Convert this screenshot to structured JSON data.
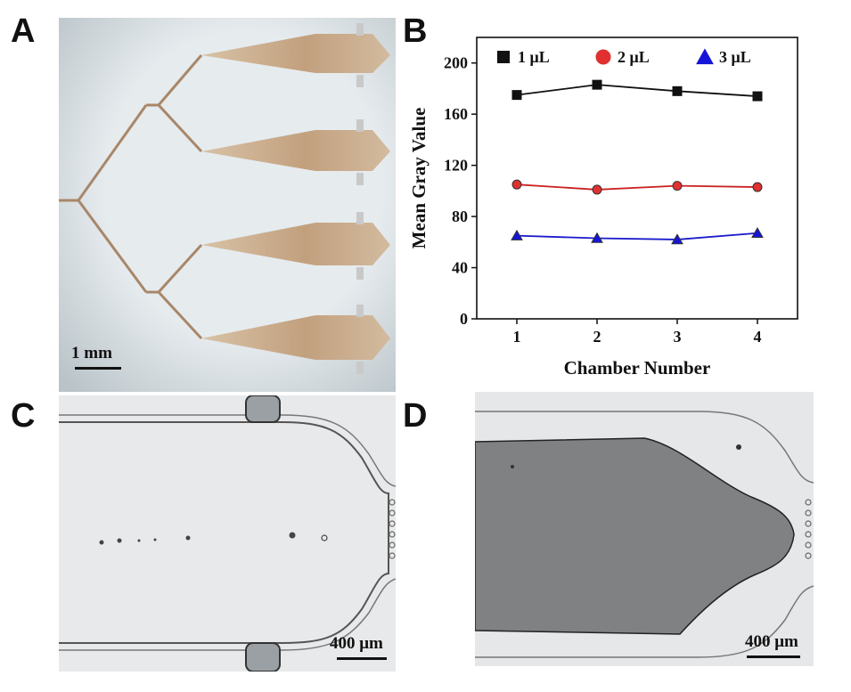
{
  "figure": {
    "panels": {
      "A": {
        "letter": "A",
        "scale_label": "1 mm"
      },
      "B": {
        "letter": "B"
      },
      "C": {
        "letter": "C",
        "scale_label": "400 μm"
      },
      "D": {
        "letter": "D",
        "scale_label": "400 μm"
      }
    }
  },
  "colors": {
    "series_1": "#111111",
    "series_2": "#cc2222",
    "series_3": "#1a1acc",
    "marker_2_fill": "#e03030",
    "marker_3_fill": "#1515d8",
    "chamber_fill": "#c8ab8a",
    "photo_bg": "#e6ebee"
  },
  "chart_data": {
    "type": "line",
    "categories": [
      "1",
      "2",
      "3",
      "4"
    ],
    "x": [
      1,
      2,
      3,
      4
    ],
    "xlim": [
      0.5,
      4.5
    ],
    "ylim": [
      0,
      220
    ],
    "yticks": [
      0,
      40,
      80,
      120,
      160,
      200
    ],
    "xlabel": "Chamber Number",
    "ylabel": "Mean Gray Value",
    "legend_position": "top",
    "series": [
      {
        "name": "1 μL",
        "marker": "square",
        "values": [
          175,
          183,
          178,
          174
        ],
        "errors": [
          2,
          2,
          2,
          2
        ]
      },
      {
        "name": "2 μL",
        "marker": "circle",
        "values": [
          105,
          101,
          104,
          103
        ],
        "errors": [
          2,
          2,
          2,
          2
        ]
      },
      {
        "name": "3 μL",
        "marker": "triangle",
        "values": [
          65,
          63,
          62,
          67
        ],
        "errors": [
          2,
          2,
          2,
          2
        ]
      }
    ]
  }
}
